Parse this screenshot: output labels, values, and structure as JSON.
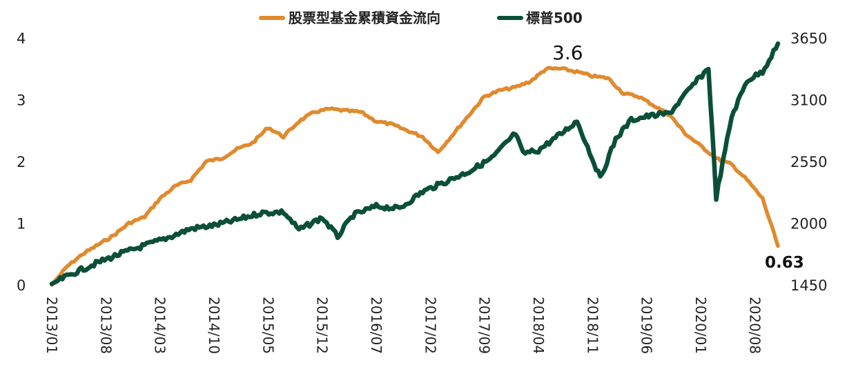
{
  "chart_data": {
    "type": "line",
    "title": "",
    "legend_position": "top-center",
    "grid": false,
    "x_ticks": [
      "2013/01",
      "2013/08",
      "2014/03",
      "2014/10",
      "2015/05",
      "2015/12",
      "2016/07",
      "2017/02",
      "2017/09",
      "2018/04",
      "2018/11",
      "2019/06",
      "2020/01",
      "2020/08"
    ],
    "y_left": {
      "ylim": [
        0,
        4
      ],
      "ticks": [
        "0",
        "1",
        "2",
        "3",
        "4"
      ]
    },
    "y_right": {
      "ylim": [
        1450,
        3650
      ],
      "ticks": [
        "1450",
        "2000",
        "2550",
        "3100",
        "3650"
      ]
    },
    "series": [
      {
        "name": "股票型基金累積資金流向",
        "axis": "left",
        "color": "#E08A2E",
        "points": [
          [
            "2013/01",
            0.0
          ],
          [
            "2013/03",
            0.3
          ],
          [
            "2013/05",
            0.5
          ],
          [
            "2013/07",
            0.65
          ],
          [
            "2013/09",
            0.8
          ],
          [
            "2013/11",
            1.0
          ],
          [
            "2014/01",
            1.1
          ],
          [
            "2014/03",
            1.4
          ],
          [
            "2014/05",
            1.6
          ],
          [
            "2014/07",
            1.7
          ],
          [
            "2014/09",
            2.0
          ],
          [
            "2014/11",
            2.05
          ],
          [
            "2015/01",
            2.2
          ],
          [
            "2015/03",
            2.3
          ],
          [
            "2015/05",
            2.55
          ],
          [
            "2015/07",
            2.4
          ],
          [
            "2015/09",
            2.65
          ],
          [
            "2015/11",
            2.8
          ],
          [
            "2016/01",
            2.85
          ],
          [
            "2016/03",
            2.82
          ],
          [
            "2016/05",
            2.8
          ],
          [
            "2016/07",
            2.65
          ],
          [
            "2016/09",
            2.6
          ],
          [
            "2016/11",
            2.5
          ],
          [
            "2017/01",
            2.4
          ],
          [
            "2017/03",
            2.15
          ],
          [
            "2017/05",
            2.45
          ],
          [
            "2017/07",
            2.75
          ],
          [
            "2017/09",
            3.05
          ],
          [
            "2017/11",
            3.15
          ],
          [
            "2018/01",
            3.2
          ],
          [
            "2018/03",
            3.3
          ],
          [
            "2018/05",
            3.5
          ],
          [
            "2018/07",
            3.5
          ],
          [
            "2018/09",
            3.45
          ],
          [
            "2018/11",
            3.38
          ],
          [
            "2019/01",
            3.35
          ],
          [
            "2019/03",
            3.1
          ],
          [
            "2019/05",
            3.05
          ],
          [
            "2019/07",
            2.9
          ],
          [
            "2019/09",
            2.75
          ],
          [
            "2019/11",
            2.45
          ],
          [
            "2020/01",
            2.25
          ],
          [
            "2020/03",
            2.05
          ],
          [
            "2020/05",
            1.95
          ],
          [
            "2020/07",
            1.7
          ],
          [
            "2020/09",
            1.4
          ],
          [
            "2020/11",
            0.63
          ]
        ]
      },
      {
        "name": "標普500",
        "axis": "right",
        "color": "#0B4F3A",
        "points": [
          [
            "2013/01",
            1460
          ],
          [
            "2013/04",
            1560
          ],
          [
            "2013/07",
            1650
          ],
          [
            "2013/10",
            1730
          ],
          [
            "2014/01",
            1800
          ],
          [
            "2014/04",
            1870
          ],
          [
            "2014/07",
            1950
          ],
          [
            "2014/10",
            1980
          ],
          [
            "2015/01",
            2030
          ],
          [
            "2015/04",
            2090
          ],
          [
            "2015/07",
            2100
          ],
          [
            "2015/09",
            1940
          ],
          [
            "2015/12",
            2050
          ],
          [
            "2016/02",
            1880
          ],
          [
            "2016/04",
            2070
          ],
          [
            "2016/07",
            2150
          ],
          [
            "2016/10",
            2130
          ],
          [
            "2017/01",
            2280
          ],
          [
            "2017/04",
            2370
          ],
          [
            "2017/07",
            2460
          ],
          [
            "2017/10",
            2580
          ],
          [
            "2018/01",
            2800
          ],
          [
            "2018/02",
            2620
          ],
          [
            "2018/04",
            2650
          ],
          [
            "2018/07",
            2800
          ],
          [
            "2018/09",
            2910
          ],
          [
            "2018/12",
            2400
          ],
          [
            "2019/02",
            2750
          ],
          [
            "2019/04",
            2920
          ],
          [
            "2019/06",
            2950
          ],
          [
            "2019/09",
            2980
          ],
          [
            "2019/12",
            3230
          ],
          [
            "2020/02",
            3380
          ],
          [
            "2020/03",
            2230
          ],
          [
            "2020/05",
            2950
          ],
          [
            "2020/07",
            3270
          ],
          [
            "2020/09",
            3350
          ],
          [
            "2020/11",
            3600
          ]
        ]
      }
    ],
    "annotations": [
      "3.6",
      "0.63"
    ]
  }
}
